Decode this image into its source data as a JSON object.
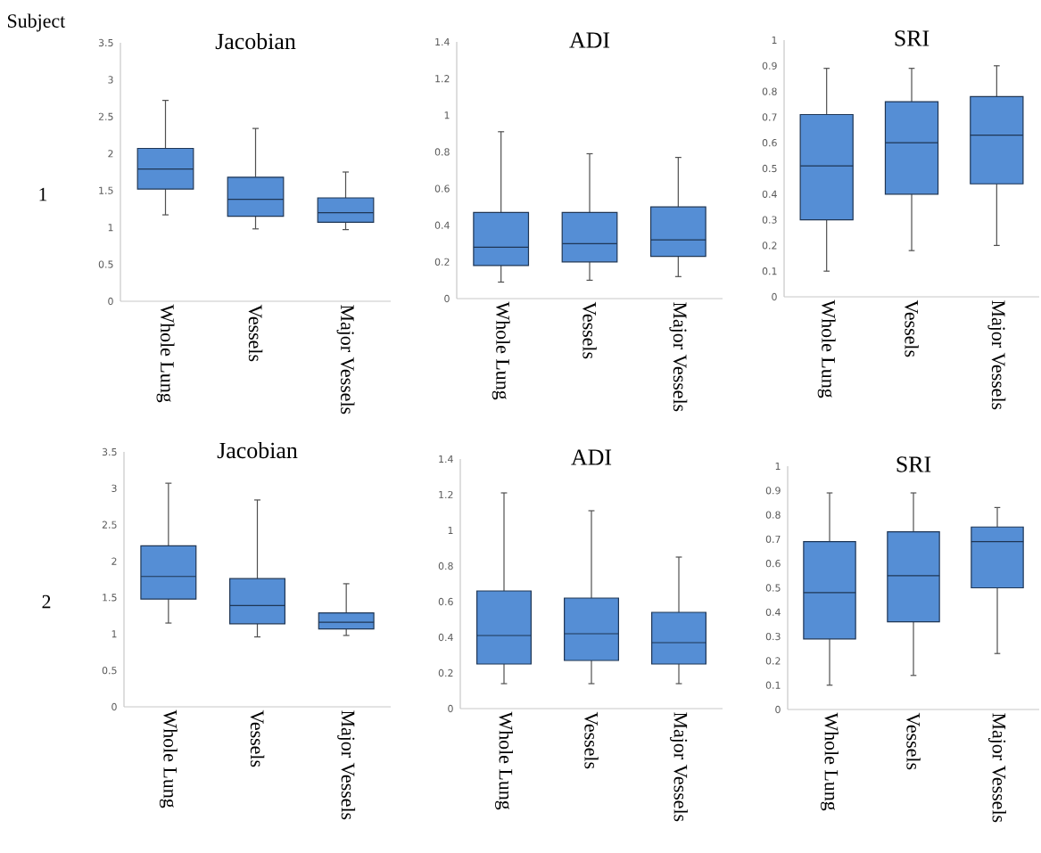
{
  "chart_data": [
    {
      "type": "box",
      "title": "Jacobian",
      "categories": [
        "Whole Lung",
        "Vessels",
        "Major Vessels"
      ],
      "color": "#558ed5",
      "ylim": [
        0,
        3.5
      ],
      "yticks": [
        0,
        0.5,
        1,
        1.5,
        2,
        2.5,
        3,
        3.5
      ],
      "annotations": [
        "Subject",
        "1"
      ],
      "boxes": [
        {
          "low": 1.17,
          "q1": 1.52,
          "median": 1.79,
          "q3": 2.07,
          "high": 2.72
        },
        {
          "low": 0.98,
          "q1": 1.15,
          "median": 1.38,
          "q3": 1.68,
          "high": 2.34
        },
        {
          "low": 0.97,
          "q1": 1.07,
          "median": 1.2,
          "q3": 1.4,
          "high": 1.75
        }
      ]
    },
    {
      "type": "box",
      "title": "ADI",
      "categories": [
        "Whole Lung",
        "Vessels",
        "Major Vessels"
      ],
      "color": "#558ed5",
      "ylim": [
        0,
        1.4
      ],
      "yticks": [
        0,
        0.2,
        0.4,
        0.6,
        0.8,
        1,
        1.2,
        1.4
      ],
      "boxes": [
        {
          "low": 0.09,
          "q1": 0.18,
          "median": 0.28,
          "q3": 0.47,
          "high": 0.91
        },
        {
          "low": 0.1,
          "q1": 0.2,
          "median": 0.3,
          "q3": 0.47,
          "high": 0.79
        },
        {
          "low": 0.12,
          "q1": 0.23,
          "median": 0.32,
          "q3": 0.5,
          "high": 0.77
        }
      ]
    },
    {
      "type": "box",
      "title": "SRI",
      "categories": [
        "Whole Lung",
        "Vessels",
        "Major Vessels"
      ],
      "color": "#558ed5",
      "ylim": [
        0,
        1
      ],
      "yticks": [
        0,
        0.1,
        0.2,
        0.3,
        0.4,
        0.5,
        0.6,
        0.7,
        0.8,
        0.9,
        1
      ],
      "boxes": [
        {
          "low": 0.1,
          "q1": 0.3,
          "median": 0.51,
          "q3": 0.71,
          "high": 0.89
        },
        {
          "low": 0.18,
          "q1": 0.4,
          "median": 0.6,
          "q3": 0.76,
          "high": 0.89
        },
        {
          "low": 0.2,
          "q1": 0.44,
          "median": 0.63,
          "q3": 0.78,
          "high": 0.9
        }
      ]
    },
    {
      "type": "box",
      "title": "Jacobian",
      "categories": [
        "Whole Lung",
        "Vessels",
        "Major Vessels"
      ],
      "color": "#558ed5",
      "ylim": [
        0,
        3.5
      ],
      "yticks": [
        0,
        0.5,
        1,
        1.5,
        2,
        2.5,
        3,
        3.5
      ],
      "annotations": [
        "2"
      ],
      "boxes": [
        {
          "low": 1.15,
          "q1": 1.48,
          "median": 1.79,
          "q3": 2.21,
          "high": 3.07
        },
        {
          "low": 0.96,
          "q1": 1.14,
          "median": 1.39,
          "q3": 1.76,
          "high": 2.84
        },
        {
          "low": 0.98,
          "q1": 1.07,
          "median": 1.16,
          "q3": 1.29,
          "high": 1.69
        }
      ]
    },
    {
      "type": "box",
      "title": "ADI",
      "categories": [
        "Whole Lung",
        "Vessels",
        "Major Vessels"
      ],
      "color": "#558ed5",
      "ylim": [
        0,
        1.4
      ],
      "yticks": [
        0,
        0.2,
        0.4,
        0.6,
        0.8,
        1,
        1.2,
        1.4
      ],
      "boxes": [
        {
          "low": 0.14,
          "q1": 0.25,
          "median": 0.41,
          "q3": 0.66,
          "high": 1.21
        },
        {
          "low": 0.14,
          "q1": 0.27,
          "median": 0.42,
          "q3": 0.62,
          "high": 1.11
        },
        {
          "low": 0.14,
          "q1": 0.25,
          "median": 0.37,
          "q3": 0.54,
          "high": 0.85
        }
      ]
    },
    {
      "type": "box",
      "title": "SRI",
      "categories": [
        "Whole Lung",
        "Vessels",
        "Major Vessels"
      ],
      "color": "#558ed5",
      "ylim": [
        0,
        1
      ],
      "yticks": [
        0,
        0.1,
        0.2,
        0.3,
        0.4,
        0.5,
        0.6,
        0.7,
        0.8,
        0.9,
        1
      ],
      "boxes": [
        {
          "low": 0.1,
          "q1": 0.29,
          "median": 0.48,
          "q3": 0.69,
          "high": 0.89
        },
        {
          "low": 0.14,
          "q1": 0.36,
          "median": 0.55,
          "q3": 0.73,
          "high": 0.89
        },
        {
          "low": 0.23,
          "q1": 0.5,
          "median": 0.69,
          "q3": 0.75,
          "high": 0.83
        }
      ]
    }
  ]
}
